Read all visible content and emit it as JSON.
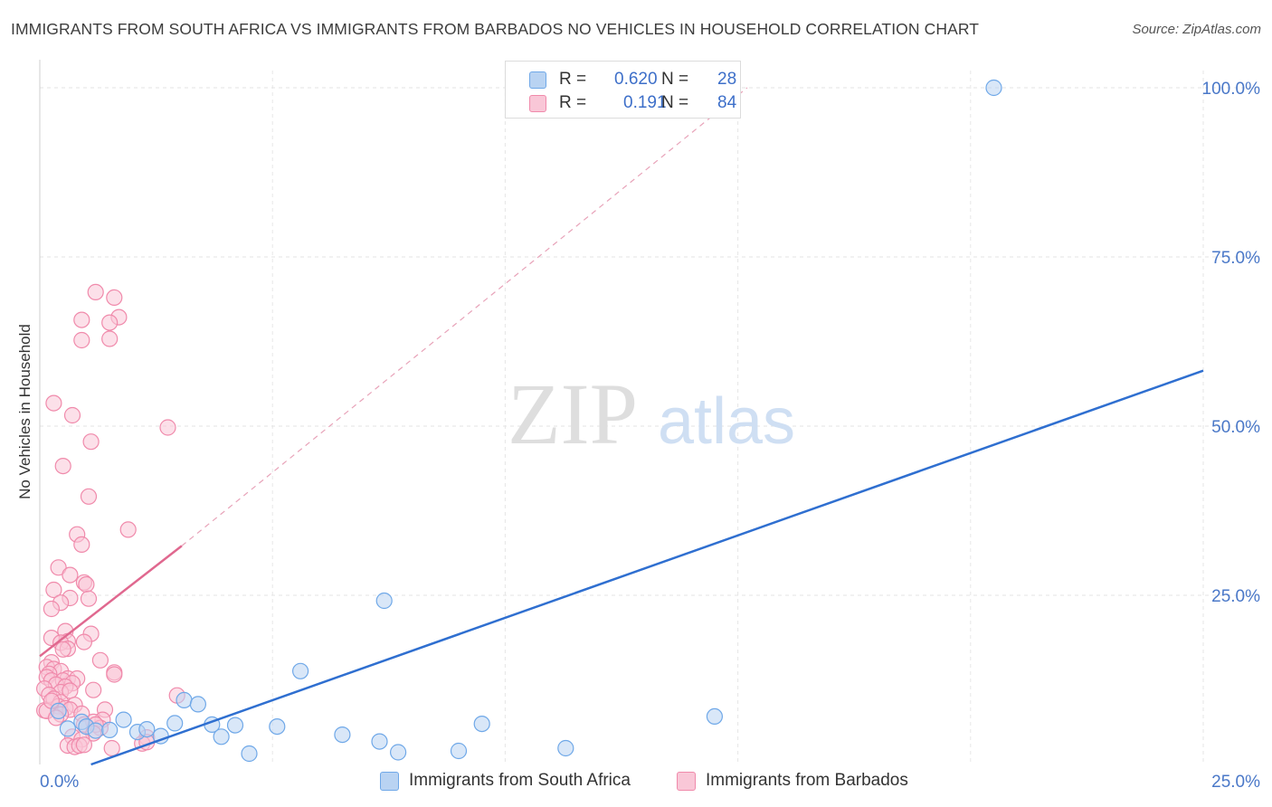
{
  "title": "IMMIGRANTS FROM SOUTH AFRICA VS IMMIGRANTS FROM BARBADOS NO VEHICLES IN HOUSEHOLD CORRELATION CHART",
  "source": "Source: ZipAtlas.com",
  "watermark": {
    "zip": "ZIP",
    "atlas": "atlas"
  },
  "legend": {
    "r_label": "R =",
    "n_label": "N =",
    "entries": [
      {
        "r": "0.620",
        "n": "28"
      },
      {
        "r": "0.191",
        "n": "84"
      }
    ]
  },
  "chart_data": {
    "type": "scatter",
    "title": "IMMIGRANTS FROM SOUTH AFRICA VS IMMIGRANTS FROM BARBADOS NO VEHICLES IN HOUSEHOLD CORRELATION CHART",
    "xlabel": "",
    "ylabel": "No Vehicles in Household",
    "xlim": [
      0,
      25
    ],
    "ylim": [
      0,
      100
    ],
    "x_tick_labels": [
      "0.0%",
      "25.0%"
    ],
    "y_ticks": [
      25,
      50,
      75,
      100
    ],
    "y_tick_labels": [
      "25.0%",
      "50.0%",
      "75.0%",
      "100.0%"
    ],
    "grid": true,
    "legend_position": "bottom",
    "series": [
      {
        "name": "Immigrants from South Africa",
        "color": "#6fa8e8",
        "fill": "#b9d3f2",
        "line_color": "#2f6fd0",
        "r": 0.62,
        "n": 28,
        "trend": {
          "x": [
            1.1,
            25
          ],
          "y": [
            0,
            58.2
          ]
        },
        "points": [
          [
            0.4,
            7.9
          ],
          [
            0.9,
            6.3
          ],
          [
            1.0,
            5.6
          ],
          [
            1.2,
            5.0
          ],
          [
            1.8,
            6.6
          ],
          [
            2.1,
            4.8
          ],
          [
            2.3,
            5.2
          ],
          [
            2.6,
            4.2
          ],
          [
            2.9,
            6.1
          ],
          [
            3.1,
            9.5
          ],
          [
            3.4,
            8.9
          ],
          [
            3.7,
            5.9
          ],
          [
            3.9,
            4.1
          ],
          [
            4.2,
            5.8
          ],
          [
            4.5,
            1.6
          ],
          [
            5.1,
            5.6
          ],
          [
            5.6,
            13.8
          ],
          [
            6.5,
            4.4
          ],
          [
            7.4,
            24.2
          ],
          [
            7.3,
            3.4
          ],
          [
            7.7,
            1.8
          ],
          [
            9.0,
            2.0
          ],
          [
            9.5,
            6.0
          ],
          [
            11.3,
            2.4
          ],
          [
            14.5,
            7.1
          ],
          [
            20.5,
            100.0
          ],
          [
            0.6,
            5.3
          ],
          [
            1.5,
            5.1
          ]
        ]
      },
      {
        "name": "Immigrants from Barbados",
        "color": "#f08aab",
        "fill": "#f9c7d7",
        "line_color": "#e0688f",
        "r": 0.191,
        "n": 84,
        "trend": {
          "x": [
            0,
            3.05
          ],
          "y": [
            16,
            32.3
          ]
        },
        "trend_dashed": {
          "x": [
            3.05,
            15.2
          ],
          "y": [
            32.3,
            100
          ]
        },
        "points": [
          [
            1.2,
            69.8
          ],
          [
            1.6,
            69.0
          ],
          [
            0.9,
            65.7
          ],
          [
            1.7,
            66.1
          ],
          [
            1.5,
            65.3
          ],
          [
            0.9,
            62.7
          ],
          [
            1.5,
            62.9
          ],
          [
            0.3,
            53.4
          ],
          [
            0.7,
            51.6
          ],
          [
            2.75,
            49.8
          ],
          [
            1.1,
            47.7
          ],
          [
            0.5,
            44.1
          ],
          [
            1.05,
            39.6
          ],
          [
            1.9,
            34.7
          ],
          [
            0.8,
            34.0
          ],
          [
            0.9,
            32.5
          ],
          [
            0.4,
            29.1
          ],
          [
            0.65,
            28.0
          ],
          [
            0.95,
            26.9
          ],
          [
            1.0,
            26.6
          ],
          [
            0.3,
            25.8
          ],
          [
            0.65,
            24.6
          ],
          [
            1.05,
            24.5
          ],
          [
            0.45,
            23.9
          ],
          [
            0.25,
            23.0
          ],
          [
            1.1,
            19.3
          ],
          [
            0.55,
            19.7
          ],
          [
            0.25,
            18.7
          ],
          [
            0.6,
            18.2
          ],
          [
            0.45,
            18.0
          ],
          [
            0.6,
            17.1
          ],
          [
            0.95,
            18.1
          ],
          [
            0.5,
            17.0
          ],
          [
            1.3,
            15.4
          ],
          [
            0.25,
            15.1
          ],
          [
            0.15,
            14.4
          ],
          [
            0.3,
            14.1
          ],
          [
            0.45,
            13.8
          ],
          [
            0.2,
            13.4
          ],
          [
            1.6,
            13.6
          ],
          [
            1.6,
            13.3
          ],
          [
            0.15,
            12.9
          ],
          [
            0.6,
            12.7
          ],
          [
            0.25,
            12.4
          ],
          [
            0.5,
            12.4
          ],
          [
            0.8,
            12.7
          ],
          [
            0.7,
            12.0
          ],
          [
            0.35,
            11.8
          ],
          [
            0.55,
            11.5
          ],
          [
            0.1,
            11.2
          ],
          [
            1.15,
            11.0
          ],
          [
            0.45,
            10.7
          ],
          [
            0.65,
            10.9
          ],
          [
            0.2,
            10.3
          ],
          [
            0.3,
            9.7
          ],
          [
            2.95,
            10.2
          ],
          [
            0.45,
            9.2
          ],
          [
            0.75,
            8.8
          ],
          [
            0.4,
            8.6
          ],
          [
            0.1,
            8.0
          ],
          [
            1.4,
            8.1
          ],
          [
            0.55,
            8.3
          ],
          [
            0.65,
            8.1
          ],
          [
            0.15,
            7.9
          ],
          [
            0.45,
            7.4
          ],
          [
            0.9,
            7.5
          ],
          [
            1.35,
            6.6
          ],
          [
            1.15,
            6.3
          ],
          [
            0.95,
            5.9
          ],
          [
            1.3,
            5.4
          ],
          [
            1.2,
            5.9
          ],
          [
            1.15,
            4.6
          ],
          [
            0.7,
            4.1
          ],
          [
            2.3,
            4.0
          ],
          [
            0.9,
            3.7
          ],
          [
            2.2,
            3.1
          ],
          [
            2.3,
            3.3
          ],
          [
            0.6,
            2.8
          ],
          [
            0.75,
            2.6
          ],
          [
            0.85,
            2.8
          ],
          [
            1.55,
            2.4
          ],
          [
            0.95,
            2.9
          ],
          [
            0.25,
            9.4
          ],
          [
            0.35,
            6.9
          ]
        ]
      }
    ]
  }
}
